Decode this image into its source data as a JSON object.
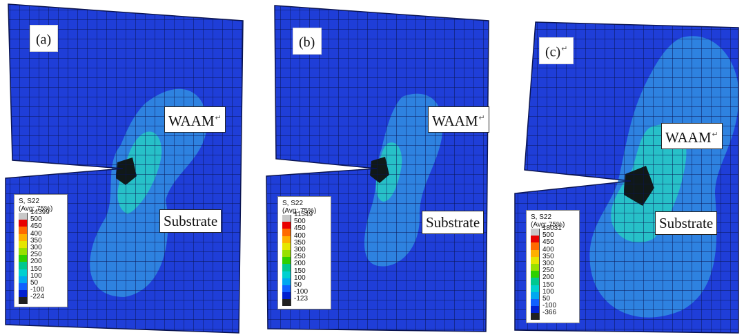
{
  "panels": [
    {
      "tag": "(a)",
      "return_mark": "",
      "waam": "WAAM",
      "substrate": "Substrate",
      "legend": {
        "title": "S, S22",
        "avg": "(Avg: 75%)",
        "max": "14399",
        "min": "-224"
      }
    },
    {
      "tag": "(b)",
      "return_mark": "",
      "waam": "WAAM",
      "substrate": "Substrate",
      "legend": {
        "title": "S, S22",
        "avg": "(Avg: 75%)",
        "max": "11549",
        "min": "-123"
      }
    },
    {
      "tag": "(c)",
      "return_mark": "↵",
      "waam": "WAAM",
      "substrate": "Substrate",
      "legend": {
        "title": "S, S22",
        "avg": "(Avg: 75%)",
        "max": "18031",
        "min": "-366"
      }
    }
  ],
  "return_mark": "↵",
  "legend_levels": [
    "500",
    "450",
    "400",
    "350",
    "300",
    "250",
    "200",
    "150",
    "100",
    "50",
    "-100"
  ],
  "legend_colors": [
    "#c8c8c8",
    "#e80000",
    "#ff6a00",
    "#ffb000",
    "#e6e600",
    "#98e000",
    "#2ed000",
    "#00c890",
    "#00d0d0",
    "#00a8f0",
    "#1060ff",
    "#0020d0",
    "#202020"
  ]
}
